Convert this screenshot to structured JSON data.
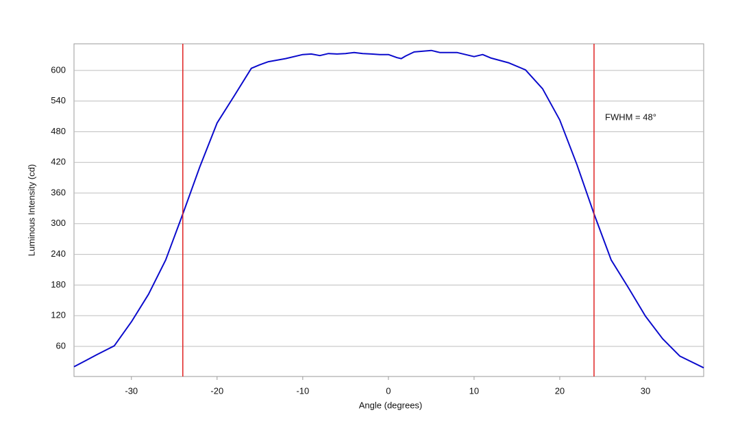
{
  "chart_data": {
    "type": "line",
    "xlabel": "Angle (degrees)",
    "ylabel": "Luminous Intensity (cd)",
    "x": [
      -36.7,
      -34,
      -32,
      -30,
      -28,
      -26,
      -24,
      -22,
      -20,
      -18,
      -16,
      -15,
      -14,
      -12,
      -10,
      -9,
      -8,
      -7,
      -6,
      -5,
      -4,
      -3,
      -2,
      -1,
      0,
      1,
      1.5,
      2,
      3,
      5,
      6,
      8,
      9,
      10,
      11,
      12,
      14,
      16,
      18,
      20,
      22,
      24,
      26,
      28,
      30,
      32,
      34,
      36.8
    ],
    "values": [
      20,
      44,
      61,
      108,
      162,
      229,
      319,
      412,
      497,
      550,
      604,
      611,
      617,
      623,
      631,
      632,
      629,
      633,
      632,
      633,
      635,
      633,
      632,
      631,
      631,
      625,
      623,
      628,
      636,
      639,
      635,
      635,
      631,
      627,
      631,
      624,
      615,
      601,
      564,
      503,
      416,
      319,
      229,
      175,
      119,
      75,
      41,
      18
    ],
    "color": "#0a0acc",
    "vlines": [
      -24,
      24
    ],
    "vline_color": "#e02020",
    "annotation": "FWHM = 48°",
    "xlim": [
      -36.7,
      36.8
    ],
    "ylim": [
      1,
      652
    ],
    "xticks": [
      -30,
      -20,
      -10,
      0,
      10,
      20,
      30
    ],
    "yticks": [
      60,
      120,
      180,
      240,
      300,
      360,
      420,
      480,
      540,
      600
    ],
    "grid": true
  }
}
